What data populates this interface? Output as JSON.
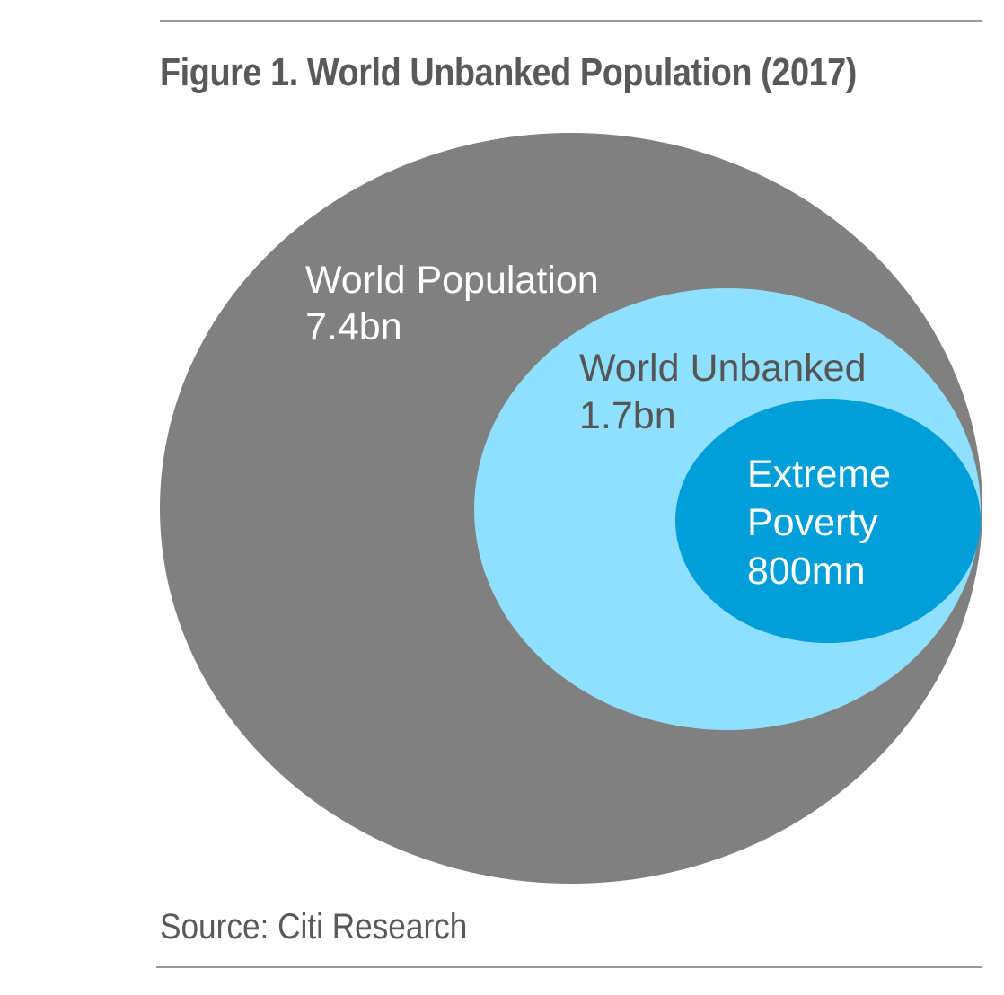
{
  "figure": {
    "title": "Figure 1. World Unbanked Population (2017)",
    "source": "Source: Citi Research"
  },
  "sets": [
    {
      "id": "world-population",
      "label_line1": "World Population",
      "label_line2": "7.4bn",
      "fill": "#808080",
      "text_color": "#ffffff"
    },
    {
      "id": "world-unbanked",
      "label_line1": "World Unbanked",
      "label_line2": "1.7bn",
      "fill": "#8fdfff",
      "text_color": "#555555"
    },
    {
      "id": "extreme-poverty",
      "label_line1": "Extreme",
      "label_line2": "Poverty",
      "label_line3": "800mn",
      "fill": "#009fd9",
      "text_color": "#ffffff"
    }
  ]
}
